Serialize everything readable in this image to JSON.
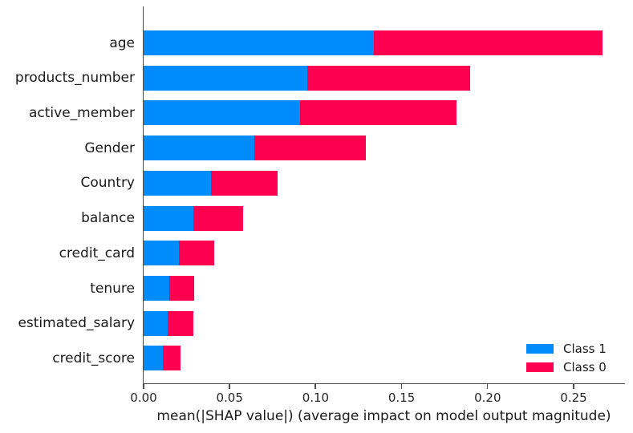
{
  "chart_data": {
    "type": "bar",
    "orientation": "horizontal",
    "stacked": true,
    "title": "",
    "xlabel": "mean(|SHAP value|) (average impact on model output magnitude)",
    "ylabel": "",
    "categories": [
      "age",
      "products_number",
      "active_member",
      "Gender",
      "Country",
      "balance",
      "credit_card",
      "tenure",
      "estimated_salary",
      "credit_score"
    ],
    "series": [
      {
        "name": "Class 1",
        "color": "#008bfb",
        "values": [
          0.134,
          0.095,
          0.091,
          0.0645,
          0.039,
          0.029,
          0.0205,
          0.015,
          0.0142,
          0.0111
        ]
      },
      {
        "name": "Class 0",
        "color": "#ff0051",
        "values": [
          0.133,
          0.095,
          0.091,
          0.0645,
          0.039,
          0.029,
          0.0205,
          0.0145,
          0.0146,
          0.0105
        ]
      }
    ],
    "totals": [
      0.267,
      0.19,
      0.182,
      0.129,
      0.078,
      0.058,
      0.041,
      0.0295,
      0.0288,
      0.0216
    ],
    "xlim": [
      0,
      0.28
    ],
    "xticks": [
      0,
      0.05,
      0.1,
      0.15,
      0.2,
      0.25
    ],
    "xtick_labels": [
      "0.00",
      "0.05",
      "0.10",
      "0.15",
      "0.20",
      "0.25"
    ],
    "grid": false,
    "legend_position": "lower right",
    "axis_color": "#4d4d4d"
  }
}
